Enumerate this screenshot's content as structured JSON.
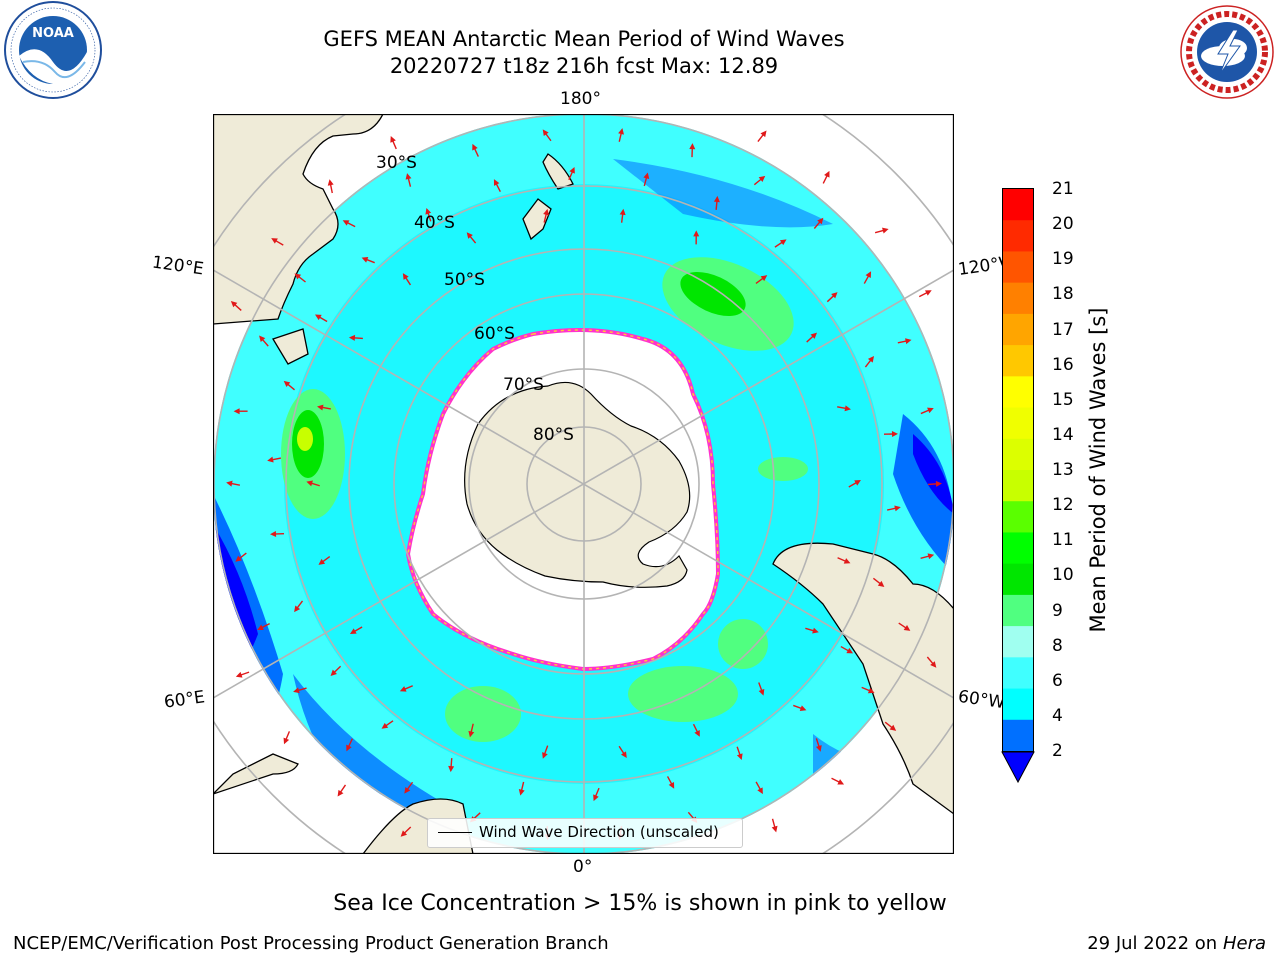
{
  "title": {
    "line1": "GEFS MEAN Antarctic Mean Period of Wind Waves",
    "line2": "20220727 t18z 216h fcst   Max: 12.89"
  },
  "logos": {
    "noaa": {
      "text": "NOAA",
      "ring_text": "NATIONAL OCEANIC AND ATMOSPHERIC ADMINISTRATION · U.S. DEPARTMENT OF COMMERCE",
      "icon": "noaa-logo-icon"
    },
    "nws": {
      "ring_text": "NATIONAL WEATHER SERVICE",
      "icon": "nws-logo-icon"
    }
  },
  "map": {
    "projection": "south-polar-stereographic",
    "field": "Mean Period of Wind Waves",
    "lon_labels": {
      "top": "180°",
      "bottom": "0°",
      "upper_left": "120°E",
      "upper_right": "120°W",
      "lower_left": "60°E",
      "lower_right": "60°W"
    },
    "lat_labels": [
      "30°S",
      "40°S",
      "50°S",
      "60°S",
      "70°S",
      "80°S"
    ],
    "colors": {
      "land": "#efebd8",
      "sea_ice": "#ffffff",
      "ice_edge": [
        "#ff33cc",
        "#ffcc33"
      ],
      "arrows": "#e0191a",
      "graticule": "#b4b4b4"
    }
  },
  "colorbar": {
    "label": "Mean Period of Wind Waves [s]",
    "ticks": [
      "21",
      "20",
      "19",
      "18",
      "17",
      "16",
      "15",
      "14",
      "13",
      "12",
      "11",
      "10",
      "9",
      "8",
      "6",
      "4",
      "2"
    ],
    "colors": [
      "#ff0000",
      "#ff2a00",
      "#ff5500",
      "#ff8000",
      "#ffa500",
      "#ffc800",
      "#ffff00",
      "#f0ff00",
      "#dcff00",
      "#c8ff00",
      "#5aff00",
      "#00ff00",
      "#00e600",
      "#50ff80",
      "#a0fff0",
      "#40ffff",
      "#00ffff",
      "#0070ff"
    ],
    "extend_color": "#0000ff"
  },
  "legend": {
    "label": "Wind Wave Direction (unscaled)"
  },
  "caption": "Sea Ice Concentration > 15% is shown in pink to yellow",
  "footer": {
    "left": "NCEP/EMC/Verification Post Processing Product Generation Branch",
    "right_prefix": "29 Jul 2022 on ",
    "right_machine": "Hera"
  }
}
